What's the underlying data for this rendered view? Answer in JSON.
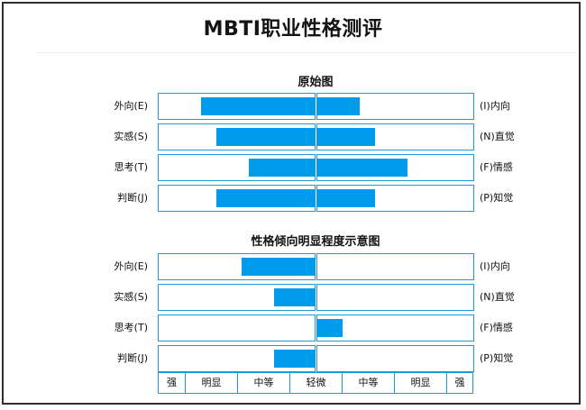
{
  "title": "MBTI职业性格测评",
  "sections": [
    {
      "title": "原始图",
      "rows": [
        {
          "left_label": "外向(E)",
          "right_label": "(I)内向",
          "left_value": 0.73,
          "right_value": 0.27
        },
        {
          "left_label": "实感(S)",
          "right_label": "(N)直觉",
          "left_value": 0.63,
          "right_value": 0.37
        },
        {
          "left_label": "思考(T)",
          "right_label": "(F)情感",
          "left_value": 0.42,
          "right_value": 0.58
        },
        {
          "left_label": "判断(J)",
          "right_label": "(P)知觉",
          "left_value": 0.63,
          "right_value": 0.37
        }
      ]
    },
    {
      "title": "性格倾向明显程度示意图",
      "rows": [
        {
          "left_label": "外向(E)",
          "right_label": "(I)内向",
          "left_value": 0.47,
          "right_value": 0
        },
        {
          "left_label": "实感(S)",
          "right_label": "(N)直觉",
          "left_value": 0.26,
          "right_value": 0
        },
        {
          "left_label": "思考(T)",
          "right_label": "(F)情感",
          "left_value": 0,
          "right_value": 0.16
        },
        {
          "left_label": "判断(J)",
          "right_label": "(P)知觉",
          "left_value": 0.26,
          "right_value": 0
        }
      ]
    }
  ],
  "scale_labels": [
    "强",
    "明显",
    "中等",
    "轻微",
    "中等",
    "明显",
    "强"
  ],
  "colors": {
    "bar": "#009bea",
    "border": "#1a9ad6"
  }
}
